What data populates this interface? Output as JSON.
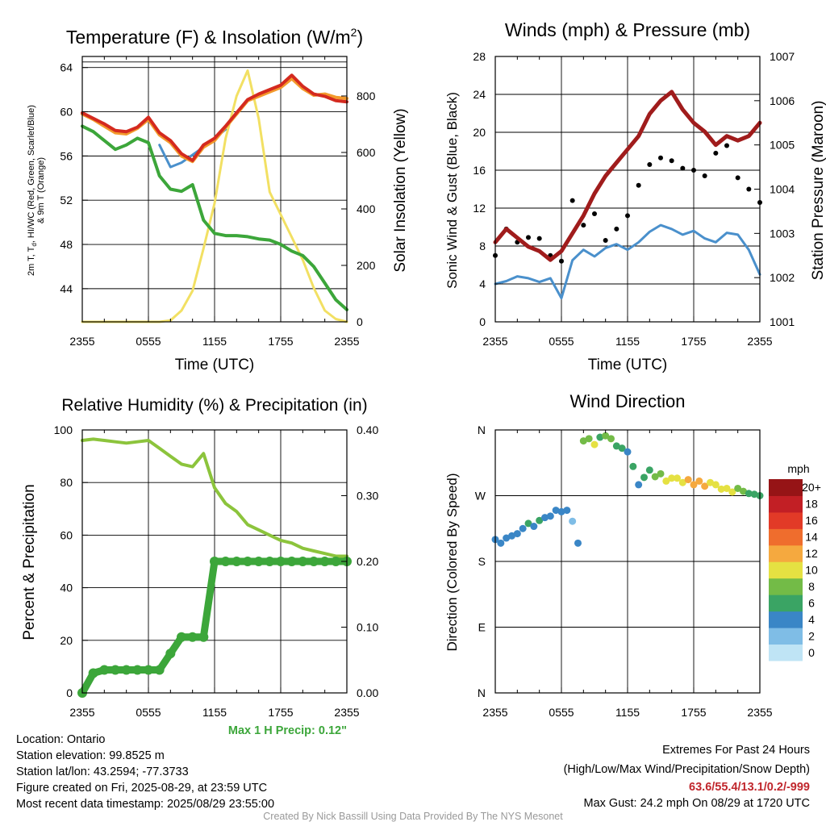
{
  "panels": {
    "temp": {
      "title": "Temperature (F) & Insolation (W/m²)",
      "xlabel": "Time (UTC)",
      "ylabel_left_1": "2m T, Td, HI/WC (Red, Green, Scarlet/Blue)",
      "ylabel_left_2": "& 9m T (Orange)",
      "ylabel_right": "Solar Insolation (Yellow)"
    },
    "wind": {
      "title": "Winds (mph) & Pressure (mb)",
      "xlabel": "Time (UTC)",
      "ylabel_left": "Sonic Wind & Gust (Blue, Black)",
      "ylabel_right": "Station Pressure (Maroon)"
    },
    "rh": {
      "title": "Relative Humidity (%) & Precipitation (in)",
      "ylabel_left": "Percent & Precipitation",
      "max_precip_label": "Max 1 H Precip: 0.12\""
    },
    "dir": {
      "title": "Wind Direction",
      "ylabel": "Direction (Colored By Speed)",
      "colorbar_title": "mph"
    }
  },
  "info": {
    "location": "Location: Ontario",
    "elevation": "Station elevation: 99.8525 m",
    "latlon": "Station lat/lon: 43.2594; -77.3733",
    "created": "Figure created on Fri, 2025-08-29, at 23:59 UTC",
    "recent": "Most recent data timestamp: 2025/08/29 23:55:00",
    "extremes_title": "Extremes For Past 24 Hours",
    "extremes_sub": "(High/Low/Max Wind/Precipitation/Snow Depth)",
    "extremes_values": "63.6/55.4/13.1/0.2/-999",
    "max_gust": "Max Gust: 24.2 mph On 08/29 at 1720 UTC",
    "credit": "Created By Nick Bassill Using Data Provided By The NYS Mesonet"
  },
  "chart_data": [
    {
      "type": "line",
      "title": "Temperature (F) & Insolation (W/m²)",
      "xlabel": "Time (UTC)",
      "x_ticks": [
        "2355",
        "0555",
        "1155",
        "1755",
        "2355"
      ],
      "ylim": [
        41,
        65
      ],
      "y_ticks": [
        44,
        48,
        52,
        56,
        60,
        64
      ],
      "y2lim": [
        0,
        940
      ],
      "y2_ticks": [
        0,
        200,
        400,
        600,
        800
      ],
      "x": [
        0,
        1,
        2,
        3,
        4,
        5,
        6,
        7,
        8,
        9,
        10,
        11,
        12,
        13,
        14,
        15,
        16,
        17,
        18,
        19,
        20,
        21,
        22,
        23,
        24
      ],
      "series": [
        {
          "name": "2m T",
          "color": "#d42a1f",
          "width": 4,
          "values": [
            59.9,
            59.4,
            58.9,
            58.3,
            58.2,
            58.6,
            59.5,
            58.1,
            57.4,
            56.2,
            55.6,
            57.0,
            57.6,
            58.7,
            59.9,
            61.1,
            61.6,
            62.0,
            62.4,
            63.3,
            62.3,
            61.6,
            61.4,
            61.0,
            60.9
          ]
        },
        {
          "name": "9m T",
          "color": "#f39a2c",
          "width": 4,
          "values": [
            59.8,
            59.3,
            58.7,
            58.1,
            58.0,
            58.5,
            59.3,
            57.9,
            57.2,
            56.0,
            55.5,
            56.8,
            57.4,
            58.6,
            59.8,
            61.0,
            61.4,
            61.8,
            62.2,
            63.0,
            62.1,
            61.5,
            61.6,
            61.3,
            61.2
          ]
        },
        {
          "name": "HI/WC",
          "color": "#4a90cc",
          "width": 3,
          "values": [
            null,
            null,
            null,
            null,
            null,
            null,
            null,
            57.0,
            55.0,
            55.4,
            56.1,
            56.8,
            57.6,
            58.4,
            null,
            null,
            null,
            null,
            null,
            null,
            null,
            null,
            null,
            null,
            null
          ]
        },
        {
          "name": "2m Td",
          "color": "#3ca63a",
          "width": 4,
          "values": [
            58.7,
            58.2,
            57.4,
            56.6,
            57.0,
            57.6,
            57.2,
            54.2,
            53.0,
            52.8,
            53.4,
            50.2,
            49.0,
            48.8,
            48.8,
            48.7,
            48.5,
            48.4,
            48.0,
            47.4,
            47.0,
            46.0,
            44.5,
            43.0,
            42.1
          ]
        },
        {
          "name": "Solar Insolation",
          "color": "#f2e063",
          "width": 3,
          "axis": "y2",
          "values": [
            0,
            0,
            0,
            0,
            0,
            0,
            0,
            0,
            5,
            40,
            110,
            260,
            420,
            650,
            800,
            890,
            720,
            460,
            380,
            300,
            220,
            120,
            40,
            10,
            0
          ]
        }
      ]
    },
    {
      "type": "line",
      "title": "Winds (mph) & Pressure (mb)",
      "xlabel": "Time (UTC)",
      "x_ticks": [
        "2355",
        "0555",
        "1155",
        "1755",
        "2355"
      ],
      "ylim": [
        0,
        28
      ],
      "y_ticks": [
        0,
        4,
        8,
        12,
        16,
        20,
        24,
        28
      ],
      "y2lim": [
        1001,
        1007
      ],
      "y2_ticks": [
        1001,
        1002,
        1003,
        1004,
        1005,
        1006,
        1007
      ],
      "x": [
        0,
        1,
        2,
        3,
        4,
        5,
        6,
        7,
        8,
        9,
        10,
        11,
        12,
        13,
        14,
        15,
        16,
        17,
        18,
        19,
        20,
        21,
        22,
        23,
        24
      ],
      "series": [
        {
          "name": "Sonic Wind",
          "color": "#4a90cc",
          "width": 3,
          "values": [
            4.0,
            4.3,
            4.8,
            4.6,
            4.2,
            4.6,
            2.5,
            6.5,
            7.6,
            6.9,
            7.8,
            8.2,
            7.6,
            8.4,
            9.5,
            10.2,
            9.8,
            9.2,
            9.6,
            8.8,
            8.4,
            9.4,
            9.2,
            7.6,
            5.0
          ]
        },
        {
          "name": "Gust",
          "color": "#000000",
          "marker": "dot",
          "values": [
            7.0,
            9.8,
            8.4,
            8.9,
            8.8,
            7.0,
            6.4,
            12.8,
            10.2,
            11.4,
            8.6,
            9.8,
            11.2,
            14.4,
            16.6,
            17.3,
            17.0,
            16.2,
            16.0,
            15.4,
            17.8,
            18.6,
            15.2,
            14.0,
            12.6
          ]
        },
        {
          "name": "Station Pressure",
          "color": "#a01c1c",
          "width": 5,
          "axis": "y2",
          "values": [
            1002.8,
            1003.1,
            1002.9,
            1002.7,
            1002.6,
            1002.4,
            1002.6,
            1003.0,
            1003.4,
            1003.9,
            1004.3,
            1004.6,
            1004.9,
            1005.2,
            1005.7,
            1006.0,
            1006.2,
            1005.8,
            1005.5,
            1005.3,
            1005.0,
            1005.2,
            1005.1,
            1005.2,
            1005.5
          ]
        }
      ]
    },
    {
      "type": "line",
      "title": "Relative Humidity (%) & Precipitation (in)",
      "x_ticks": [
        "2355",
        "0555",
        "1155",
        "1755",
        "2355"
      ],
      "ylim": [
        0,
        100
      ],
      "y_ticks": [
        0,
        20,
        40,
        60,
        80,
        100
      ],
      "y2lim": [
        0,
        0.4
      ],
      "y2_ticks": [
        "0.00",
        "0.10",
        "0.20",
        "0.30",
        "0.40"
      ],
      "x": [
        0,
        1,
        2,
        3,
        4,
        5,
        6,
        7,
        8,
        9,
        10,
        11,
        12,
        13,
        14,
        15,
        16,
        17,
        18,
        19,
        20,
        21,
        22,
        23,
        24
      ],
      "series": [
        {
          "name": "Relative Humidity",
          "color": "#8cc43c",
          "width": 4,
          "values": [
            96,
            96.5,
            96,
            95.5,
            95,
            95.5,
            96,
            93,
            90,
            87,
            86,
            91,
            78,
            72,
            69,
            64,
            62,
            60,
            58,
            57,
            55,
            54,
            53,
            52,
            52
          ]
        },
        {
          "name": "Precipitation",
          "color": "#3ca63a",
          "marker": "dot",
          "axis": "y2",
          "values": [
            0,
            0.03,
            0.035,
            0.035,
            0.035,
            0.035,
            0.035,
            0.035,
            0.06,
            0.085,
            0.085,
            0.085,
            0.2,
            0.2,
            0.2,
            0.2,
            0.2,
            0.2,
            0.2,
            0.2,
            0.2,
            0.2,
            0.2,
            0.2,
            0.2
          ]
        }
      ],
      "annotation": "Max 1 H Precip: 0.12\""
    },
    {
      "type": "scatter",
      "title": "Wind Direction",
      "ylabel": "Direction (Colored By Speed)",
      "x_ticks": [
        "2355",
        "0555",
        "1155",
        "1755",
        "2355"
      ],
      "y_ticks": [
        "N",
        "E",
        "S",
        "W",
        "N"
      ],
      "ylim": [
        0,
        360
      ],
      "colorbar": {
        "title": "mph",
        "labels": [
          "0",
          "2",
          "4",
          "6",
          "8",
          "10",
          "12",
          "14",
          "16",
          "18",
          "20+"
        ],
        "colors": [
          "#bfe4f5",
          "#7fbde6",
          "#3a86c6",
          "#3aa464",
          "#73bb47",
          "#e5e142",
          "#f5a93f",
          "#ef6d2d",
          "#e23a27",
          "#c21f25",
          "#961416"
        ]
      },
      "x": [
        0,
        0.5,
        1,
        1.5,
        2,
        2.5,
        3,
        3.5,
        4,
        4.5,
        5,
        5.5,
        6,
        6.5,
        7,
        7.5,
        8,
        8.5,
        9,
        9.5,
        10,
        10.5,
        11,
        11.5,
        12,
        12.5,
        13,
        13.5,
        14,
        14.5,
        15,
        15.5,
        16,
        16.5,
        17,
        17.5,
        18,
        18.5,
        19,
        19.5,
        20,
        20.5,
        21,
        21.5,
        22,
        22.5,
        23,
        23.5,
        24
      ],
      "direction_deg": [
        210,
        205,
        212,
        215,
        218,
        225,
        232,
        228,
        236,
        240,
        242,
        250,
        248,
        250,
        235,
        205,
        345,
        348,
        340,
        350,
        352,
        348,
        338,
        335,
        330,
        310,
        285,
        295,
        305,
        296,
        300,
        290,
        294,
        294,
        288,
        292,
        285,
        290,
        283,
        288,
        285,
        279,
        280,
        275,
        280,
        276,
        273,
        272,
        270
      ],
      "speed_mph": [
        3,
        3,
        4,
        4,
        4,
        4,
        5,
        4,
        5,
        4,
        4,
        4,
        4,
        3,
        2,
        4,
        7,
        8,
        9,
        6,
        8,
        7,
        5,
        5,
        4,
        5,
        4,
        5,
        6,
        8,
        8,
        9,
        10,
        10,
        10,
        11,
        12,
        11,
        12,
        10,
        10,
        9,
        9,
        10,
        8,
        7,
        6,
        6,
        5
      ]
    }
  ]
}
